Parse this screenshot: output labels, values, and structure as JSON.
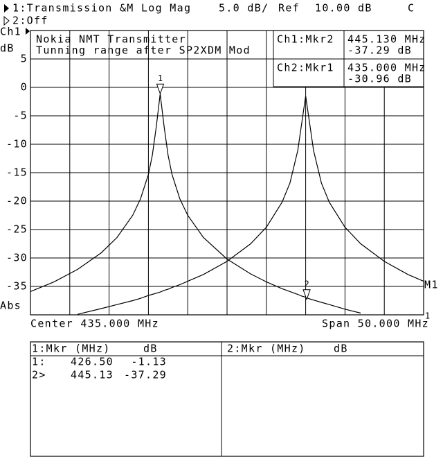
{
  "header": {
    "channel1": "1:Transmission &M Log Mag",
    "scale": "5.0 dB/",
    "ref": "Ref",
    "ref_value": "10.00 dB",
    "flag": "C",
    "channel2": "2:Off"
  },
  "chart_data": {
    "type": "line",
    "title": [
      "Nokia NMT Transmitter",
      "Tunning range after SP2XDM Mod"
    ],
    "channel_label": "Ch1",
    "y_unit": "dB",
    "format_label": "Abs",
    "center_label": "Center 435.000 MHz",
    "span_label": "Span 50.000 MHz",
    "xlim": [
      410,
      460
    ],
    "ylim": [
      -40,
      10
    ],
    "yticks": [
      5,
      0,
      -5,
      -10,
      -15,
      -20,
      -25,
      -30,
      -35
    ],
    "grid": true,
    "x": [
      410,
      413,
      416,
      419,
      421,
      423,
      424,
      425,
      425.5,
      426,
      426.5,
      427,
      427.5,
      428,
      429,
      430,
      432,
      435,
      438,
      440,
      442,
      443,
      444,
      444.5,
      445,
      445.5,
      446,
      447,
      448,
      450,
      452,
      455,
      458,
      460
    ],
    "series": [
      {
        "color": "#000000",
        "values": [
          -35.9,
          -34.2,
          -32.0,
          -29.1,
          -26.4,
          -22.5,
          -19.6,
          -15.3,
          -11.9,
          -6.9,
          -1.13,
          -6.9,
          -11.9,
          -15.3,
          -19.6,
          -22.5,
          -26.4,
          -30.2,
          -32.8,
          -34.2,
          -35.4,
          -35.9,
          -36.4,
          -36.7,
          -36.9,
          -37.2,
          -37.4,
          -37.8,
          -38.2,
          -39.0,
          -39.7,
          null,
          null,
          null
        ]
      },
      {
        "color": "#000000",
        "values": [
          null,
          null,
          -39.9,
          -38.9,
          -38.2,
          -37.5,
          -37.1,
          -36.6,
          -36.4,
          -36.2,
          -36.0,
          -35.7,
          -35.5,
          -35.2,
          -34.7,
          -34.1,
          -32.9,
          -30.6,
          -27.5,
          -24.6,
          -20.2,
          -16.8,
          -11.1,
          -6.3,
          -1.5,
          -6.3,
          -11.1,
          -16.8,
          -20.2,
          -24.6,
          -27.5,
          -30.6,
          -32.9,
          -34.1
        ]
      }
    ],
    "markers": [
      {
        "label": "1",
        "x": 426.5,
        "y": -1.13
      },
      {
        "label": "2",
        "x": 445.13,
        "y": -37.29
      }
    ],
    "trace_labels": [
      "M1",
      "1"
    ],
    "readouts": [
      {
        "name": "Ch1:Mkr2",
        "freq": "445.130 MHz",
        "level": "-37.29 dB"
      },
      {
        "name": "Ch2:Mkr1",
        "freq": "435.000 MHz",
        "level": "-30.96 dB"
      }
    ]
  },
  "table": {
    "headers": [
      [
        "1:Mkr (MHz)",
        "dB"
      ],
      [
        "2:Mkr (MHz)",
        "dB"
      ]
    ],
    "rows": [
      [
        "1:",
        "426.50",
        "-1.13"
      ],
      [
        "2>",
        "445.13",
        "-37.29"
      ]
    ]
  }
}
